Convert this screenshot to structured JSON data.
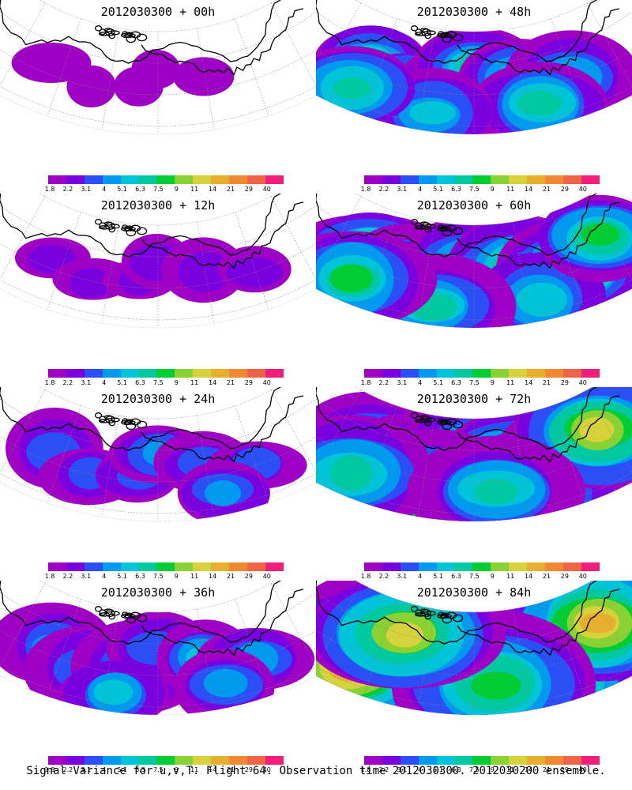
{
  "palette": {
    "colors": [
      "#9f00c5",
      "#7b00e0",
      "#2b4ff5",
      "#0099f0",
      "#00c4d8",
      "#00c8a0",
      "#00cc33",
      "#8ad234",
      "#d6d23c",
      "#e6af2e",
      "#f08a32",
      "#f06446",
      "#f0207a"
    ],
    "levels": [
      "1.8",
      "2.2",
      "3.1",
      "4",
      "5.1",
      "6.3",
      "7.5",
      "9",
      "11",
      "14",
      "21",
      "29",
      "40"
    ]
  },
  "panels": [
    {
      "title": "2012030300 + 00h",
      "intensity": 0
    },
    {
      "title": "2012030300 + 48h",
      "intensity": 4
    },
    {
      "title": "2012030300 + 12h",
      "intensity": 1
    },
    {
      "title": "2012030300 + 60h",
      "intensity": 5
    },
    {
      "title": "2012030300 + 24h",
      "intensity": 2
    },
    {
      "title": "2012030300 + 72h",
      "intensity": 6
    },
    {
      "title": "2012030300 + 36h",
      "intensity": 3
    },
    {
      "title": "2012030300 + 84h",
      "intensity": 7
    }
  ],
  "footer": "Signal Variance for u,v,T. Flight 64. Observation time 2012030300. 2012030200 ensemble."
}
